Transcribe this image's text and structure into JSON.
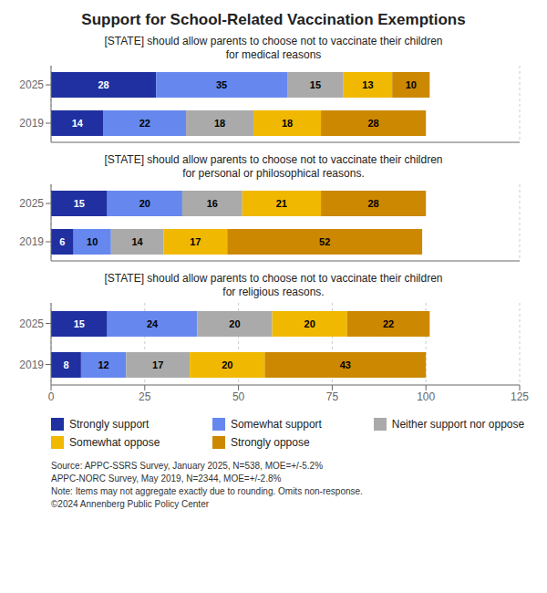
{
  "chart_data": [
    {
      "type": "bar",
      "title": "Support for School-Related Vaccination Exemptions",
      "subtitle": "[STATE] should allow parents to choose not to vaccinate their children\nfor medical reasons",
      "orientation": "horizontal",
      "stacked": true,
      "data_labels": true,
      "grid": true,
      "tick_labels": "y",
      "categories": [
        "2025",
        "2019"
      ],
      "series": [
        {
          "name": "Strongly support",
          "color": "#2030a0",
          "values": [
            28,
            14
          ]
        },
        {
          "name": "Somewhat support",
          "color": "#6688ee",
          "values": [
            35,
            22
          ]
        },
        {
          "name": "Neither support nor oppose",
          "color": "#aaaaaa",
          "values": [
            15,
            18
          ]
        },
        {
          "name": "Somewhat oppose",
          "color": "#f0b800",
          "values": [
            13,
            18
          ]
        },
        {
          "name": "Strongly oppose",
          "color": "#cc8800",
          "values": [
            10,
            28
          ]
        }
      ],
      "xlim": [
        0,
        125
      ],
      "xticks": [
        0,
        25,
        50,
        75,
        100,
        125
      ]
    },
    {
      "type": "bar",
      "subtitle": "[STATE] should allow parents to choose not to vaccinate their children\nfor personal or philosophical reasons.",
      "orientation": "horizontal",
      "stacked": true,
      "data_labels": true,
      "grid": true,
      "tick_labels": "y",
      "categories": [
        "2025",
        "2019"
      ],
      "series": [
        {
          "name": "Strongly support",
          "color": "#2030a0",
          "values": [
            15,
            6
          ]
        },
        {
          "name": "Somewhat support",
          "color": "#6688ee",
          "values": [
            20,
            10
          ]
        },
        {
          "name": "Neither support nor oppose",
          "color": "#aaaaaa",
          "values": [
            16,
            14
          ]
        },
        {
          "name": "Somewhat oppose",
          "color": "#f0b800",
          "values": [
            21,
            17
          ]
        },
        {
          "name": "Strongly oppose",
          "color": "#cc8800",
          "values": [
            28,
            52
          ]
        }
      ],
      "xlim": [
        0,
        125
      ],
      "xticks": [
        0,
        25,
        50,
        75,
        100,
        125
      ]
    },
    {
      "type": "bar",
      "subtitle": "[STATE] should allow parents to choose not to vaccinate their children\nfor religious reasons.",
      "orientation": "horizontal",
      "stacked": true,
      "data_labels": true,
      "grid": true,
      "tick_labels": true,
      "categories": [
        "2025",
        "2019"
      ],
      "series": [
        {
          "name": "Strongly support",
          "color": "#2030a0",
          "values": [
            15,
            8
          ]
        },
        {
          "name": "Somewhat support",
          "color": "#6688ee",
          "values": [
            24,
            12
          ]
        },
        {
          "name": "Neither support nor oppose",
          "color": "#aaaaaa",
          "values": [
            20,
            17
          ]
        },
        {
          "name": "Somewhat oppose",
          "color": "#f0b800",
          "values": [
            20,
            20
          ]
        },
        {
          "name": "Strongly oppose",
          "color": "#cc8800",
          "values": [
            22,
            43
          ]
        }
      ],
      "xlim": [
        0,
        125
      ],
      "xticks": [
        0,
        25,
        50,
        75,
        100,
        125
      ],
      "annotations": [
        "Source: APPC-SSRS Survey, January 2025, N=538, MOE=+/-5.2%\nAPPC-NORC Survey, May 2019, N=2344, MOE=+/-2.8%\nNote: Items may not aggregate exactly due to rounding. Omits non-response.\n©2024 Annenberg Public Policy Center"
      ]
    }
  ]
}
